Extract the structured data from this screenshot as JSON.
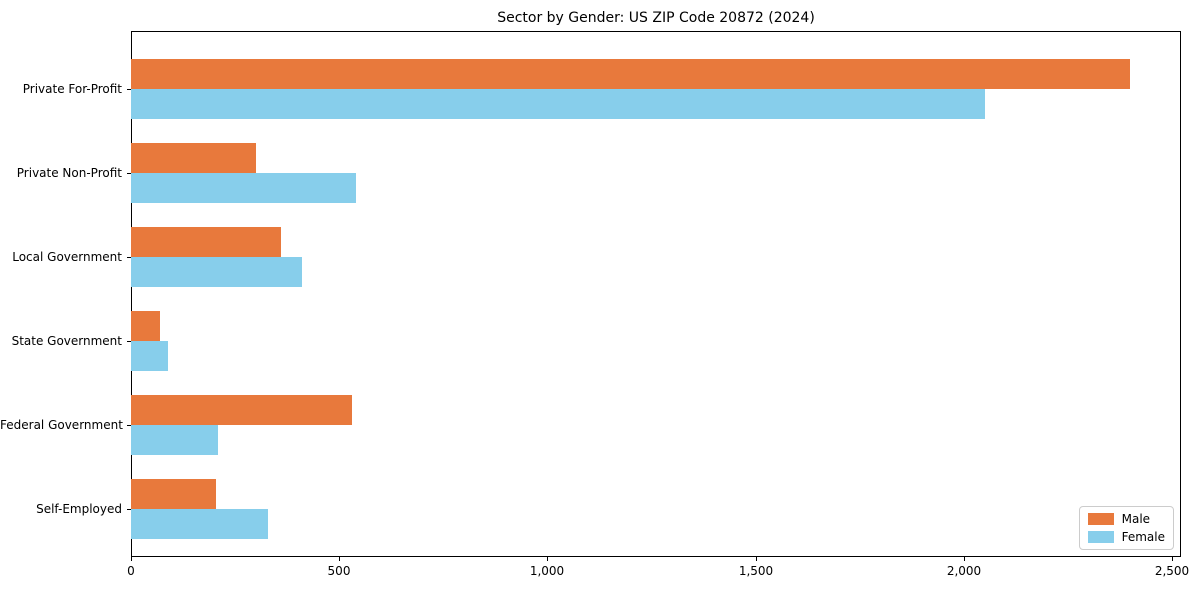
{
  "figure": {
    "background": "#ffffff",
    "border_color": "#000000"
  },
  "chart_data": {
    "type": "bar",
    "orientation": "horizontal",
    "title": "Sector by Gender: US ZIP Code 20872 (2024)",
    "categories": [
      "Private For-Profit",
      "Private Non-Profit",
      "Local Government",
      "State Government",
      "Federal Government",
      "Self-Employed"
    ],
    "series": [
      {
        "name": "Male",
        "color": "#e8793c",
        "values": [
          2400,
          300,
          360,
          70,
          530,
          205
        ]
      },
      {
        "name": "Female",
        "color": "#87ceeb",
        "values": [
          2050,
          540,
          410,
          90,
          210,
          330
        ]
      }
    ],
    "xlabel": "",
    "ylabel": "",
    "xlim": [
      0,
      2522
    ],
    "x_ticks": [
      0,
      500,
      1000,
      1500,
      2000,
      2500
    ],
    "x_tick_labels": [
      "0",
      "500",
      "1,000",
      "1,500",
      "2,000",
      "2,500"
    ],
    "grid": false,
    "legend": {
      "position": "lower right",
      "entries": [
        "Male",
        "Female"
      ]
    }
  }
}
